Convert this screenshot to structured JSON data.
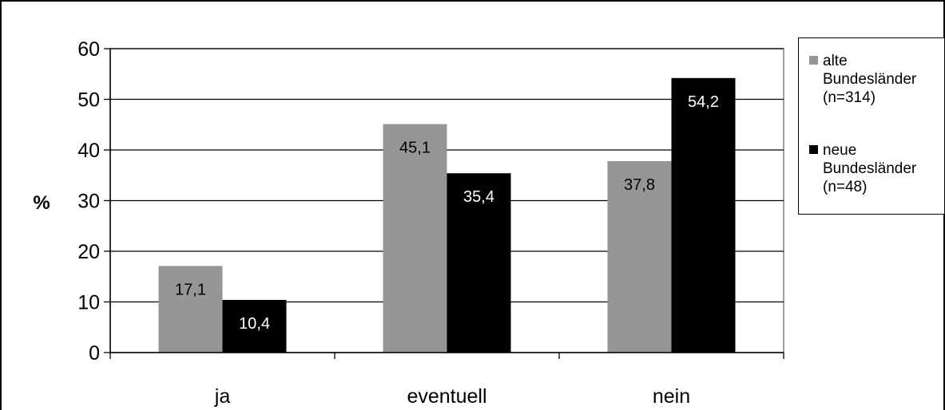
{
  "chart_data": {
    "type": "bar",
    "categories": [
      "ja",
      "eventuell",
      "nein"
    ],
    "series": [
      {
        "name": "alte\nBundesländer\n(n=314)",
        "values": [
          17.1,
          45.1,
          37.8
        ],
        "labels": [
          "17,1",
          "45,1",
          "37,8"
        ],
        "color": "#969696"
      },
      {
        "name": "neue\nBundesländer\n(n=48)",
        "values": [
          10.4,
          35.4,
          54.2
        ],
        "labels": [
          "10,4",
          "35,4",
          "54,2"
        ],
        "color": "#000000"
      }
    ],
    "ylabel": "%",
    "xlabel": "",
    "ylim": [
      0,
      60
    ],
    "yticks": [
      "0",
      "10",
      "20",
      "30",
      "40",
      "50",
      "60"
    ],
    "grid": true,
    "legend": "right"
  }
}
